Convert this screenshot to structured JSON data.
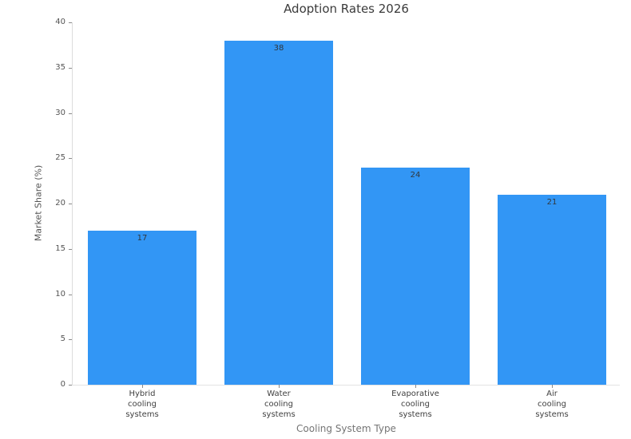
{
  "chart_data": {
    "type": "bar",
    "title": "Adoption Rates 2026",
    "xlabel": "Cooling System Type",
    "ylabel": "Market Share (%)",
    "categories": [
      "Hybrid cooling systems",
      "Water cooling systems",
      "Evaporative cooling systems",
      "Air cooling systems"
    ],
    "values": [
      17,
      38,
      24,
      21
    ],
    "bar_value_labels": [
      "17",
      "38",
      "24",
      "21"
    ],
    "ylim": [
      0,
      40
    ],
    "yticks": [
      0,
      5,
      10,
      15,
      20,
      25,
      30,
      35,
      40
    ],
    "grid": false,
    "legend": "none",
    "bar_color": "#3296f5",
    "colors": {
      "background": "#ffffff",
      "bar": "#3296f5",
      "axis_line": "#dcdcdc",
      "tick_text": "#545454",
      "title_text": "#3b3b3b"
    }
  }
}
